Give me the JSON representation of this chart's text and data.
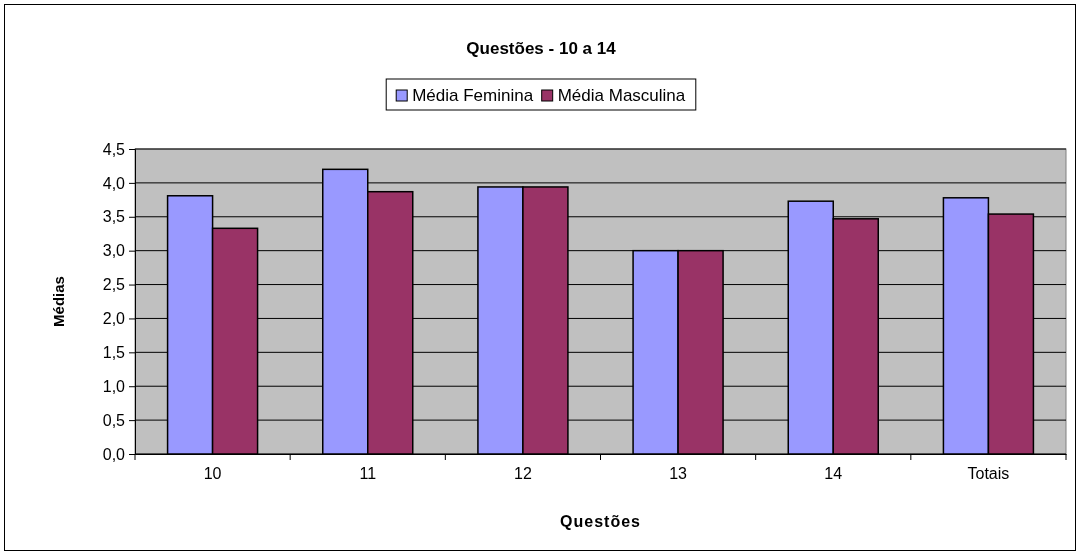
{
  "chart_data": {
    "type": "bar",
    "title": "Questões - 10 a 14",
    "xlabel": "Questões",
    "ylabel": "Médias",
    "categories": [
      "10",
      "11",
      "12",
      "13",
      "14",
      "Totais"
    ],
    "series": [
      {
        "name": "Média Feminina",
        "color": "#9999ff",
        "values": [
          3.81,
          4.2,
          3.94,
          3.0,
          3.73,
          3.78
        ]
      },
      {
        "name": "Média Masculina",
        "color": "#993366",
        "values": [
          3.33,
          3.87,
          3.94,
          3.0,
          3.47,
          3.54
        ]
      }
    ],
    "ylim": [
      0,
      4.5
    ],
    "yticks": [
      {
        "value": 0,
        "label": "0,0"
      },
      {
        "value": 0.5,
        "label": "0,5"
      },
      {
        "value": 1,
        "label": "1,0"
      },
      {
        "value": 1.5,
        "label": "1,5"
      },
      {
        "value": 2,
        "label": "2,0"
      },
      {
        "value": 2.5,
        "label": "2,5"
      },
      {
        "value": 3,
        "label": "3,0"
      },
      {
        "value": 3.5,
        "label": "3,5"
      },
      {
        "value": 4,
        "label": "4,0"
      },
      {
        "value": 4.5,
        "label": "4,5"
      }
    ],
    "grid": "y",
    "legend": "top"
  }
}
